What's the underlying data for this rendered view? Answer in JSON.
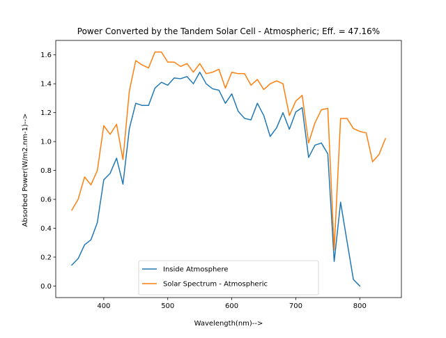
{
  "chart_data": {
    "type": "line",
    "title": "Power Converted by the Tandem Solar Cell - Atmospheric; Eff. = 47.16%",
    "xlabel": "Wavelength(nm)-->",
    "ylabel": "Absorbed Power(W/m2.nm-1)-->",
    "xlim": [
      325,
      865
    ],
    "ylim": [
      -0.08,
      1.7
    ],
    "xticks": [
      400,
      500,
      600,
      700,
      800
    ],
    "yticks": [
      0.0,
      0.2,
      0.4,
      0.6,
      0.8,
      1.0,
      1.2,
      1.4,
      1.6
    ],
    "grid": false,
    "legend_position": "lower-center",
    "series": [
      {
        "name": "Inside Atmosphere",
        "color": "#1f77b4",
        "x": [
          350,
          360,
          370,
          380,
          390,
          400,
          410,
          420,
          430,
          440,
          450,
          460,
          470,
          480,
          490,
          500,
          510,
          520,
          530,
          540,
          550,
          560,
          570,
          580,
          590,
          600,
          610,
          620,
          630,
          640,
          650,
          660,
          670,
          680,
          690,
          700,
          710,
          720,
          730,
          740,
          750,
          760,
          770,
          780,
          790,
          800
        ],
        "y": [
          0.145,
          0.19,
          0.285,
          0.32,
          0.44,
          0.735,
          0.78,
          0.885,
          0.705,
          1.09,
          1.265,
          1.25,
          1.25,
          1.37,
          1.41,
          1.39,
          1.44,
          1.435,
          1.45,
          1.4,
          1.48,
          1.4,
          1.365,
          1.355,
          1.265,
          1.33,
          1.21,
          1.16,
          1.15,
          1.265,
          1.18,
          1.035,
          1.095,
          1.2,
          1.085,
          1.205,
          1.235,
          0.89,
          0.975,
          0.99,
          0.915,
          0.17,
          0.58,
          0.31,
          0.045,
          0.0
        ]
      },
      {
        "name": "Solar Spectrum - Atmospheric",
        "color": "#ff7f0e",
        "x": [
          350,
          360,
          370,
          380,
          390,
          400,
          410,
          420,
          430,
          440,
          450,
          460,
          470,
          480,
          490,
          500,
          510,
          520,
          530,
          540,
          550,
          560,
          570,
          580,
          590,
          600,
          610,
          620,
          630,
          640,
          650,
          660,
          670,
          680,
          690,
          700,
          710,
          720,
          730,
          740,
          750,
          760,
          770,
          780,
          790,
          800,
          810,
          820,
          830,
          840
        ],
        "y": [
          0.525,
          0.6,
          0.755,
          0.7,
          0.8,
          1.11,
          1.05,
          1.12,
          0.875,
          1.35,
          1.56,
          1.53,
          1.51,
          1.62,
          1.62,
          1.55,
          1.55,
          1.52,
          1.54,
          1.48,
          1.54,
          1.47,
          1.48,
          1.5,
          1.37,
          1.48,
          1.47,
          1.47,
          1.39,
          1.43,
          1.36,
          1.4,
          1.42,
          1.4,
          1.18,
          1.28,
          1.32,
          0.99,
          1.13,
          1.22,
          1.23,
          0.25,
          1.16,
          1.16,
          1.09,
          1.07,
          1.06,
          0.86,
          0.91,
          1.02
        ]
      }
    ]
  }
}
